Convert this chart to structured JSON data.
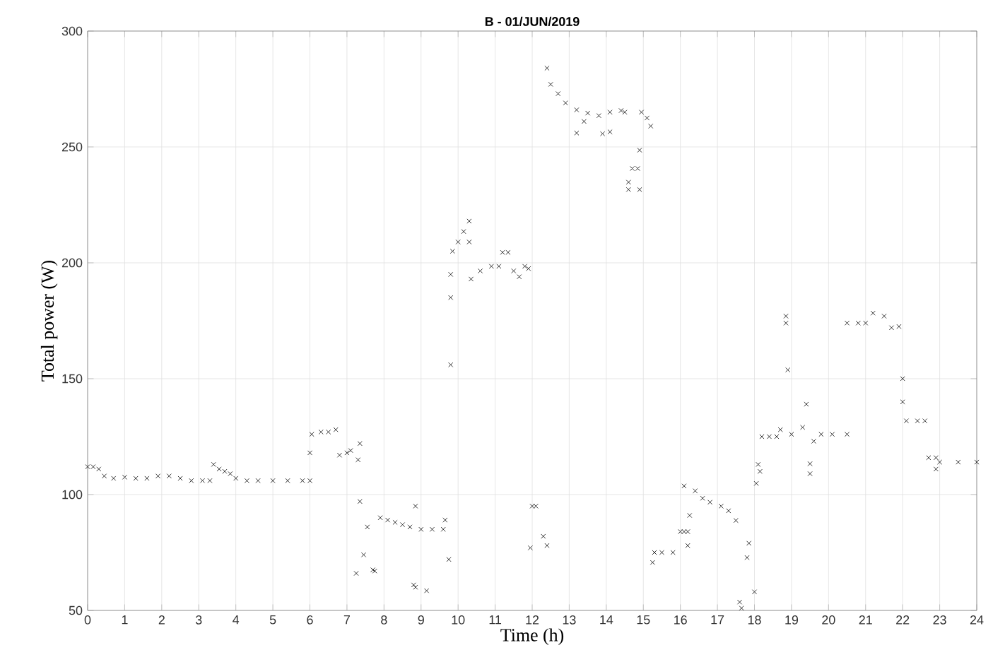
{
  "chart_data": {
    "type": "scatter",
    "title": "B - 01/JUN/2019",
    "xlabel": "Time (h)",
    "ylabel": "Total power (W)",
    "xlim": [
      0,
      24
    ],
    "xticks": [
      0,
      1,
      2,
      3,
      4,
      5,
      6,
      7,
      8,
      9,
      10,
      11,
      12,
      13,
      14,
      15,
      16,
      17,
      18,
      19,
      20,
      21,
      22,
      23,
      24
    ],
    "ylim": [
      50,
      300
    ],
    "yticks": [
      50,
      100,
      150,
      200,
      250,
      300
    ],
    "grid": true,
    "marker": "cross",
    "series": [
      {
        "color": "#303030",
        "x": [
          0,
          0.15,
          0.3,
          0.45,
          0.7,
          1,
          1.3,
          1.6,
          1.9,
          2.2,
          2.5,
          2.8,
          3.1,
          3.3,
          3.4,
          3.55,
          3.7,
          3.85,
          4,
          4.3,
          4.6,
          5,
          5.4,
          5.8,
          6,
          6,
          6.05,
          6.3,
          6.5,
          6.7,
          6.8,
          7,
          7.1,
          7.3,
          7.35,
          7.25,
          7.35,
          7.45,
          7.55,
          7.7,
          7.75,
          7.9,
          8.1,
          8.3,
          8.5,
          8.7,
          9,
          9.3,
          9.6,
          9.65,
          9.75,
          8.85,
          8.8,
          8.85,
          9.15,
          9.8,
          9.8,
          9.8,
          9.85,
          10,
          10.15,
          10.3,
          10.3,
          10.35,
          10.6,
          10.9,
          11.1,
          11.2,
          11.35,
          11.5,
          11.65,
          11.8,
          11.9,
          12,
          12.1,
          11.95,
          12.3,
          12.4,
          12.4,
          12.5,
          12.7,
          12.9,
          13.2,
          13.5,
          13.8,
          14.1,
          14.4,
          13.2,
          13.4,
          13.9,
          14.1,
          14.5,
          14.95,
          15.1,
          15.2,
          14.9,
          14.7,
          14.85,
          14.6,
          14.6,
          14.9,
          15.25,
          15.3,
          15.5,
          15.8,
          16,
          16.1,
          16.2,
          16.2,
          16.1,
          16.25,
          16.4,
          16.6,
          16.8,
          17.1,
          17.3,
          17.5,
          17.6,
          17.65,
          17.8,
          17.85,
          18,
          18.05,
          18.1,
          18.15,
          18.2,
          18.4,
          18.6,
          18.7,
          18.85,
          18.85,
          18.9,
          19,
          19.3,
          19.4,
          19.5,
          19.5,
          19.6,
          19.8,
          20.1,
          20.5,
          20.5,
          20.8,
          21,
          21.2,
          21.5,
          21.7,
          21.9,
          22,
          22,
          22.1,
          22.4,
          22.6,
          22.7,
          22.9,
          22.9,
          23,
          23.5,
          24
        ],
        "values": [
          112,
          112,
          111,
          108,
          107,
          107.5,
          107,
          107,
          108,
          108,
          107,
          106,
          106,
          106,
          113,
          111,
          110,
          109,
          107,
          106,
          106,
          106,
          106,
          106,
          106,
          118,
          126,
          127,
          127,
          128,
          117,
          118,
          119,
          115,
          122,
          66,
          97,
          74,
          86,
          67.5,
          67,
          90,
          89,
          88,
          87,
          86,
          85,
          85,
          85,
          89,
          72,
          95,
          61,
          60,
          58.5,
          156,
          185,
          195,
          205,
          209,
          213.5,
          218,
          209,
          193,
          196.5,
          198.5,
          198.5,
          204.5,
          204.5,
          196.5,
          194,
          198.5,
          197.5,
          95,
          95,
          77,
          82,
          78,
          284,
          277,
          273,
          269,
          266,
          264.6,
          263.5,
          265,
          265.7,
          256,
          261,
          255.7,
          256.5,
          265,
          265,
          262.5,
          259,
          248.6,
          240.7,
          240.7,
          234.8,
          231.6,
          231.6,
          70.7,
          75,
          75,
          75,
          84,
          84,
          84,
          78,
          103.7,
          91,
          101.6,
          98.4,
          96.7,
          95,
          93,
          88.8,
          53.6,
          51,
          72.8,
          79,
          58,
          104.8,
          113,
          110,
          125,
          125,
          125,
          128,
          174,
          177,
          153.8,
          126,
          129,
          139,
          113.3,
          109,
          123,
          126,
          126,
          126,
          174,
          174,
          174,
          178.3,
          177,
          172,
          172.5,
          150,
          140,
          131.8,
          131.8,
          131.8,
          115.9,
          115.9,
          111,
          114,
          114,
          114
        ]
      }
    ]
  }
}
